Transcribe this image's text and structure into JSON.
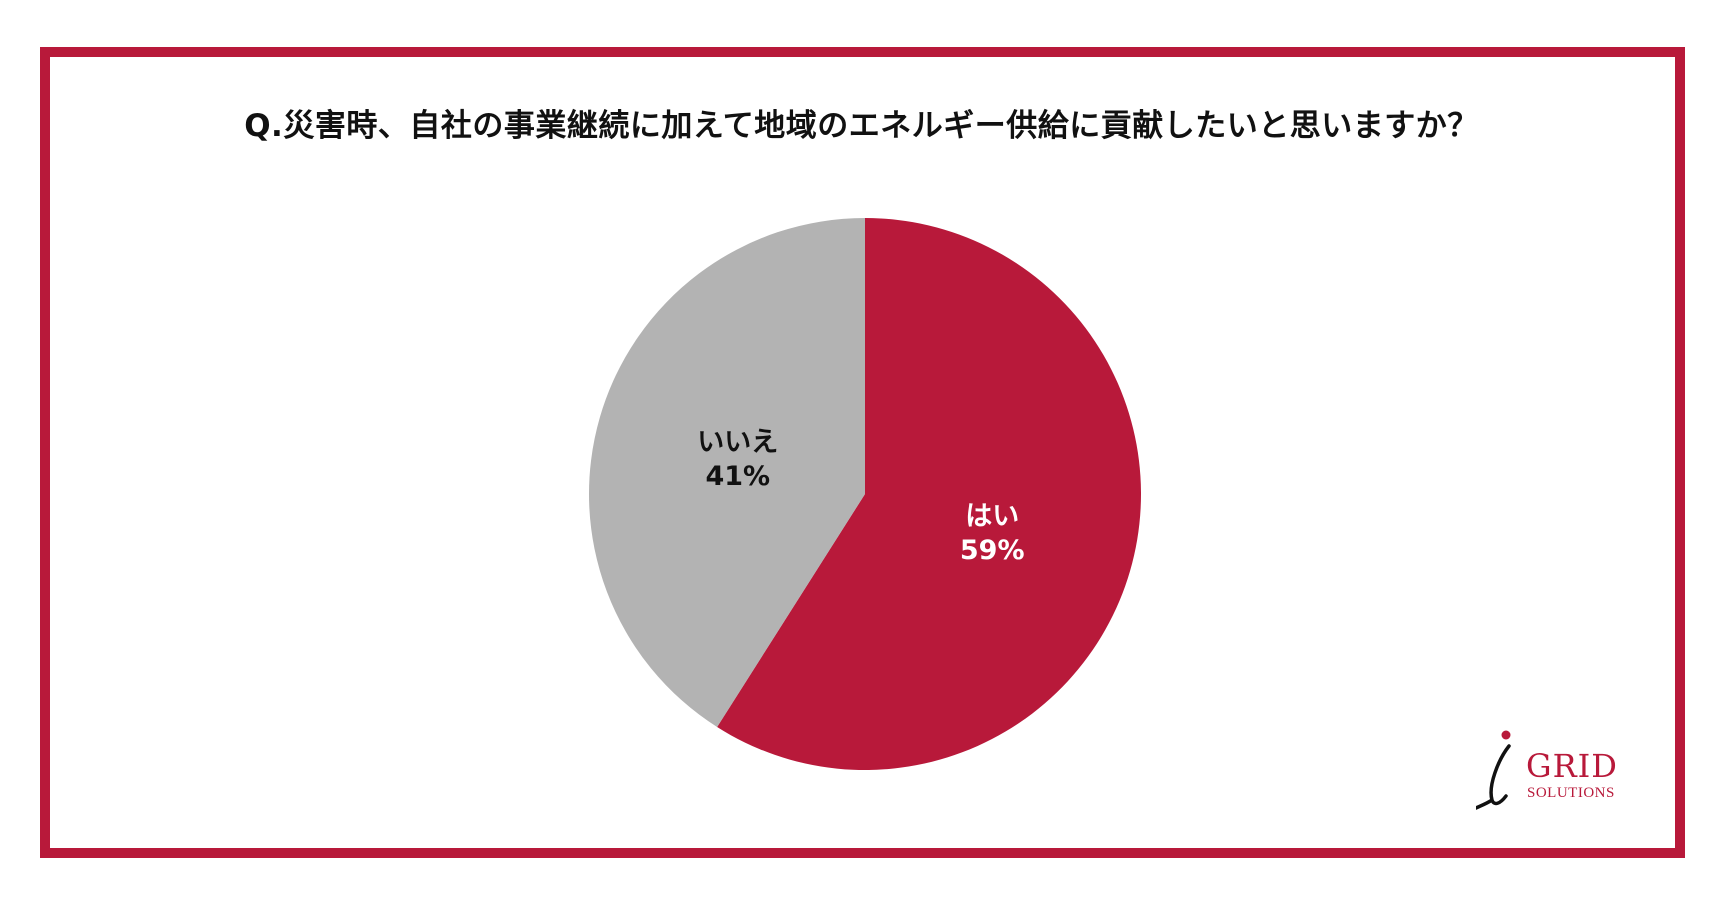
{
  "title": "Q.災害時、自社の事業継続に加えて地域のエネルギー供給に貢献したいと思いますか？",
  "chart_data": {
    "type": "pie",
    "title": "Q.災害時、自社の事業継続に加えて地域のエネルギー供給に貢献したいと思いますか？",
    "slices": [
      {
        "label": "はい",
        "value": 59,
        "value_label": "59%",
        "color": "#b8193a",
        "text_color": "#ffffff"
      },
      {
        "label": "いいえ",
        "value": 41,
        "value_label": "41%",
        "color": "#b3b3b3",
        "text_color": "#111111"
      }
    ],
    "start": "top",
    "direction": "clockwise"
  },
  "logo": {
    "brand": "GRID",
    "sub": "SOLUTIONS",
    "color": "#b8193a"
  },
  "frame_color": "#b8193a"
}
